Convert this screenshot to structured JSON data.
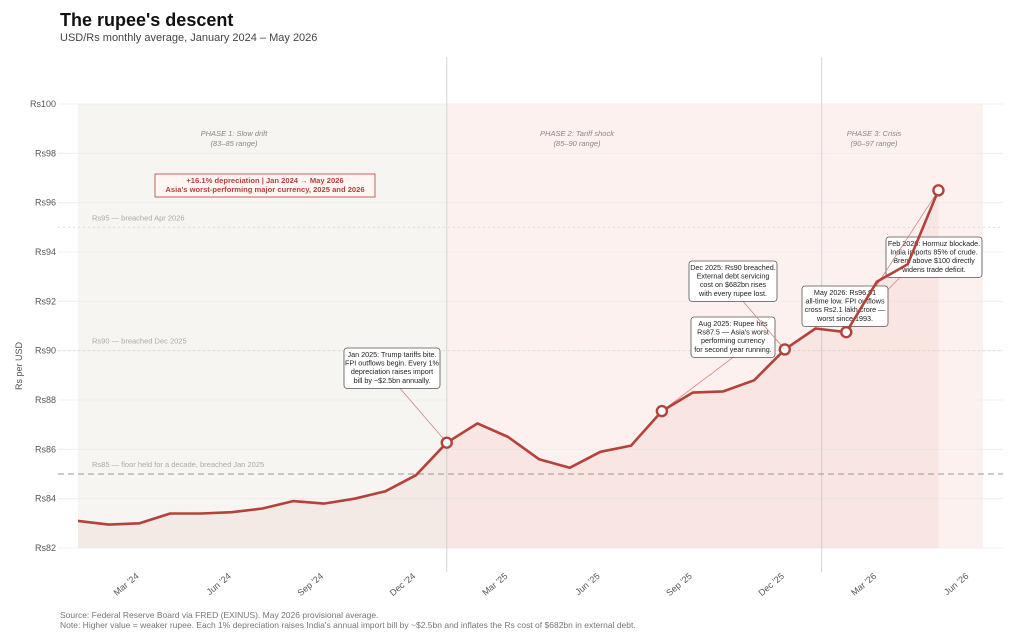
{
  "title": "The rupee's descent",
  "subtitle": "USD/Rs monthly average, January 2024 – May 2026",
  "footer": {
    "source": "Source: Federal Reserve Board via FRED (EXINUS). May 2026 provisional average.",
    "note": "Note: Higher value = weaker rupee. Each 1% depreciation raises India's annual import bill by ~$2.5bn and inflates the Rs cost of $682bn in external debt."
  },
  "colors": {
    "line": "#b5413a",
    "phase1": "#f7f5f2",
    "phase2": "#fdf1ef",
    "phase3": "#fbe6e3"
  },
  "chart_data": {
    "type": "line",
    "ylabel": "Rs per USD",
    "ylim": [
      82,
      100
    ],
    "yticks": [
      "Rs82",
      "Rs84",
      "Rs86",
      "Rs88",
      "Rs90",
      "Rs92",
      "Rs94",
      "Rs96",
      "Rs98",
      "Rs100"
    ],
    "xticks": [
      "Mar '24",
      "Jun '24",
      "Sep '24",
      "Dec '24",
      "Mar '25",
      "Jun '25",
      "Sep '25",
      "Dec '25",
      "Mar '26",
      "Jun '26"
    ],
    "series": [
      {
        "x": [
          "2024-01",
          "2024-02",
          "2024-03",
          "2024-04",
          "2024-05",
          "2024-06",
          "2024-07",
          "2024-08",
          "2024-09",
          "2024-10",
          "2024-11",
          "2024-12",
          "2025-01",
          "2025-02",
          "2025-03",
          "2025-04",
          "2025-05",
          "2025-06",
          "2025-07",
          "2025-08",
          "2025-09",
          "2025-10",
          "2025-11",
          "2025-12",
          "2026-01",
          "2026-02",
          "2026-03",
          "2026-04",
          "2026-05"
        ],
        "values": [
          83.1,
          82.95,
          83.0,
          83.4,
          83.4,
          83.45,
          83.6,
          83.9,
          83.8,
          84.0,
          84.3,
          84.95,
          86.27,
          87.05,
          86.5,
          85.6,
          85.25,
          85.9,
          86.15,
          87.55,
          88.3,
          88.35,
          88.8,
          90.05,
          90.9,
          90.75,
          92.8,
          93.5,
          96.5
        ]
      }
    ],
    "highlight_points": [
      "2025-01",
      "2025-08",
      "2025-12",
      "2026-02",
      "2026-05"
    ],
    "reference_lines": [
      {
        "y": 85,
        "label": "Rs85 — floor held for a decade, breached Jan 2025"
      },
      {
        "y": 90,
        "label": "Rs90 — breached Dec 2025"
      },
      {
        "y": 95,
        "label": "Rs95 — breached Apr 2026"
      }
    ],
    "phases": [
      {
        "name": "PHASE 1: Slow drift",
        "range": "(83–85 range)"
      },
      {
        "name": "PHASE 2: Tariff shock",
        "range": "(85–90 range)"
      },
      {
        "name": "PHASE 3: Crisis",
        "range": "(90–97 range)"
      }
    ],
    "callout": [
      "+16.1% depreciation  |  Jan 2024 → May 2026",
      "Asia's worst-performing major currency, 2025 and 2026"
    ],
    "annotations": [
      {
        "point": "2025-01",
        "lines": [
          "Jan 2025: Trump tariffs bite.",
          "FPI outflows begin. Every 1%",
          "depreciation raises import",
          "bill by ~$2.5bn annually."
        ]
      },
      {
        "point": "2025-08",
        "lines": [
          "Aug 2025: Rupee hits",
          "Rs87.5 — Asia's worst",
          "performing currency",
          "for second year running."
        ]
      },
      {
        "point": "2025-12",
        "lines": [
          "Dec 2025: Rs90 breached.",
          "External debt servicing",
          "cost on $682bn rises",
          "with every rupee lost."
        ]
      },
      {
        "point": "2026-02",
        "lines": [
          "Feb 2026: Hormuz blockade.",
          "India imports 85% of crude.",
          "Brent above $100 directly",
          "widens trade deficit."
        ]
      },
      {
        "point": "2026-05",
        "lines": [
          "May 2026: Rs96.91",
          "all-time low. FPI outflows",
          "cross Rs2.1 lakh crore —",
          "worst since 1993."
        ]
      }
    ]
  }
}
